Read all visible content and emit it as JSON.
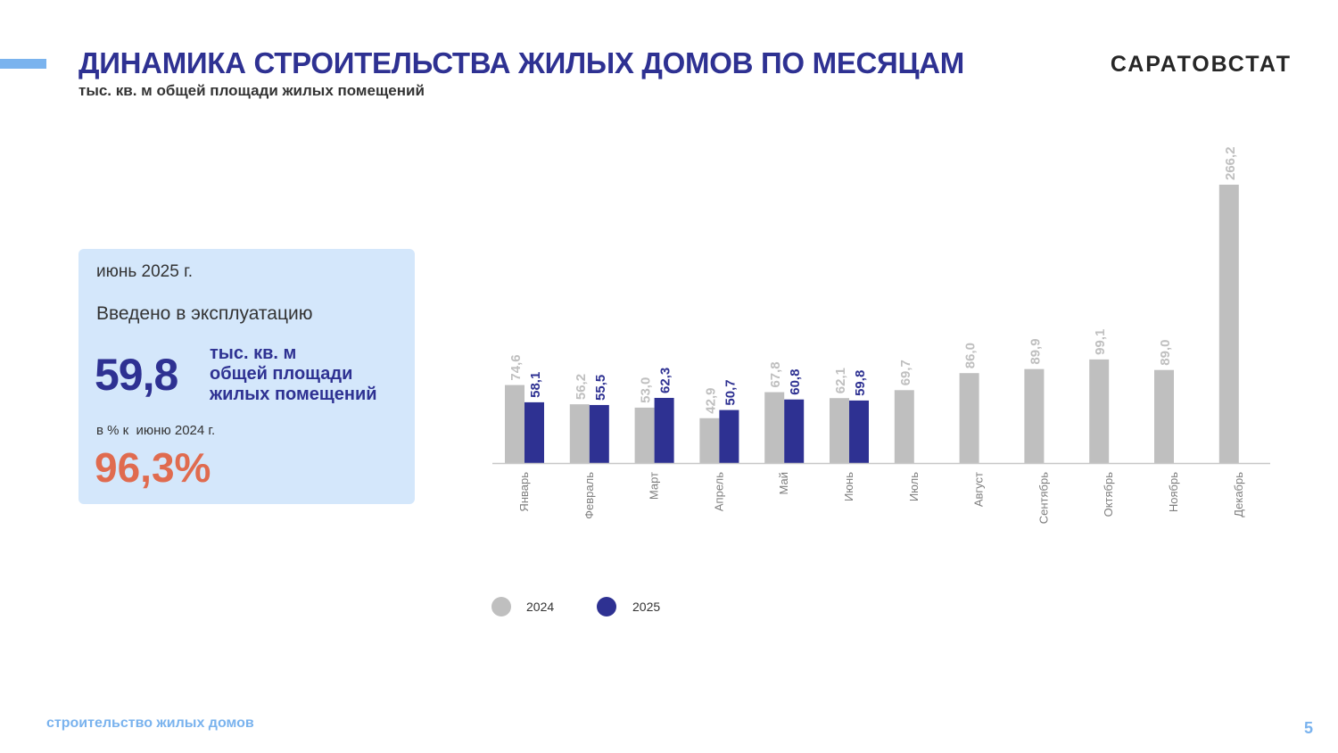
{
  "header": {
    "title": "ДИНАМИКА СТРОИТЕЛЬСТВА ЖИЛЫХ ДОМОВ ПО МЕСЯЦАМ",
    "subtitle": "тыс. кв. м общей площади жилых помещений",
    "brand": "САРАТОВСТАТ"
  },
  "card": {
    "period": "июнь 2025 г.",
    "caption": "Введено в эксплуатацию",
    "value": "59,8",
    "unit_lines": [
      "тыс. кв. м",
      "общей площади",
      "жилых помещений"
    ],
    "pct_label": "в % к  июню 2024 г.",
    "pct_value": "96,3%"
  },
  "colors": {
    "series_2024": "#bfbfbf",
    "series_2025": "#2e3192",
    "label_2024": "#bfbfbf",
    "label_2025": "#2e3192"
  },
  "chart_data": {
    "type": "bar",
    "categories": [
      "Январь",
      "Февраль",
      "Март",
      "Апрель",
      "Май",
      "Июнь",
      "Июль",
      "Август",
      "Сентябрь",
      "Октябрь",
      "Ноябрь",
      "Декабрь"
    ],
    "series": [
      {
        "name": "2024",
        "values": [
          74.6,
          56.2,
          53.0,
          42.9,
          67.8,
          62.1,
          69.7,
          86.0,
          89.9,
          99.1,
          89.0,
          266.2
        ],
        "labels": [
          "74,6",
          "56,2",
          "53,0",
          "42,9",
          "67,8",
          "62,1",
          "69,7",
          "86,0",
          "89,9",
          "99,1",
          "89,0",
          "266,2"
        ]
      },
      {
        "name": "2025",
        "values": [
          58.1,
          55.5,
          62.3,
          50.7,
          60.8,
          59.8,
          null,
          null,
          null,
          null,
          null,
          null
        ],
        "labels": [
          "58,1",
          "55,5",
          "62,3",
          "50,7",
          "60,8",
          "59,8",
          null,
          null,
          null,
          null,
          null,
          null
        ]
      }
    ],
    "ylim": [
      0,
      275
    ],
    "grid": false,
    "legend_position": "bottom"
  },
  "footer": {
    "section": "строительство жилых домов",
    "page": "5"
  }
}
